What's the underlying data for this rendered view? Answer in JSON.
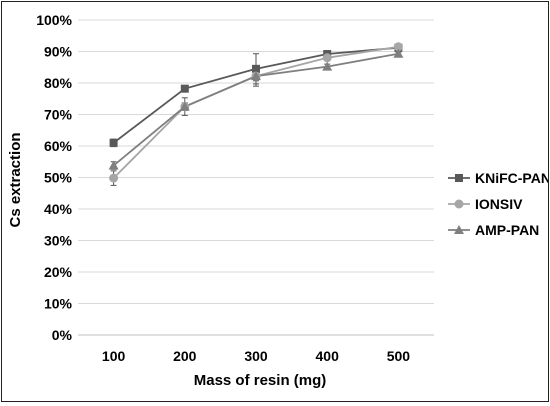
{
  "chart_data": {
    "type": "line",
    "title": "",
    "xlabel": "Mass of resin (mg)",
    "ylabel": "Cs extraction",
    "x": [
      100,
      200,
      300,
      400,
      500
    ],
    "x_tick_labels": [
      "100",
      "200",
      "300",
      "400",
      "500"
    ],
    "ylim": [
      0,
      1
    ],
    "y_tick_labels": [
      "0%",
      "10%",
      "20%",
      "30%",
      "40%",
      "50%",
      "60%",
      "70%",
      "80%",
      "90%",
      "100%"
    ],
    "grid": true,
    "legend_position": "right",
    "series": [
      {
        "name": "KNiFC-PAN",
        "marker": "square",
        "color": "#595959",
        "values": [
          0.61,
          0.782,
          0.845,
          0.892,
          0.912
        ],
        "error": [
          0.012,
          0.006,
          0.048,
          0.006,
          0.005
        ]
      },
      {
        "name": "IONSIV",
        "marker": "circle",
        "color": "#a6a6a6",
        "values": [
          0.498,
          0.725,
          0.822,
          0.88,
          0.915
        ],
        "error": [
          0.023,
          0.028,
          0.032,
          0.008,
          0.005
        ]
      },
      {
        "name": "AMP-PAN",
        "marker": "triangle",
        "color": "#7f7f7f",
        "values": [
          0.538,
          0.725,
          0.822,
          0.852,
          0.893
        ],
        "error": [
          0.012,
          0.012,
          0.015,
          0.008,
          0.005
        ]
      }
    ]
  }
}
